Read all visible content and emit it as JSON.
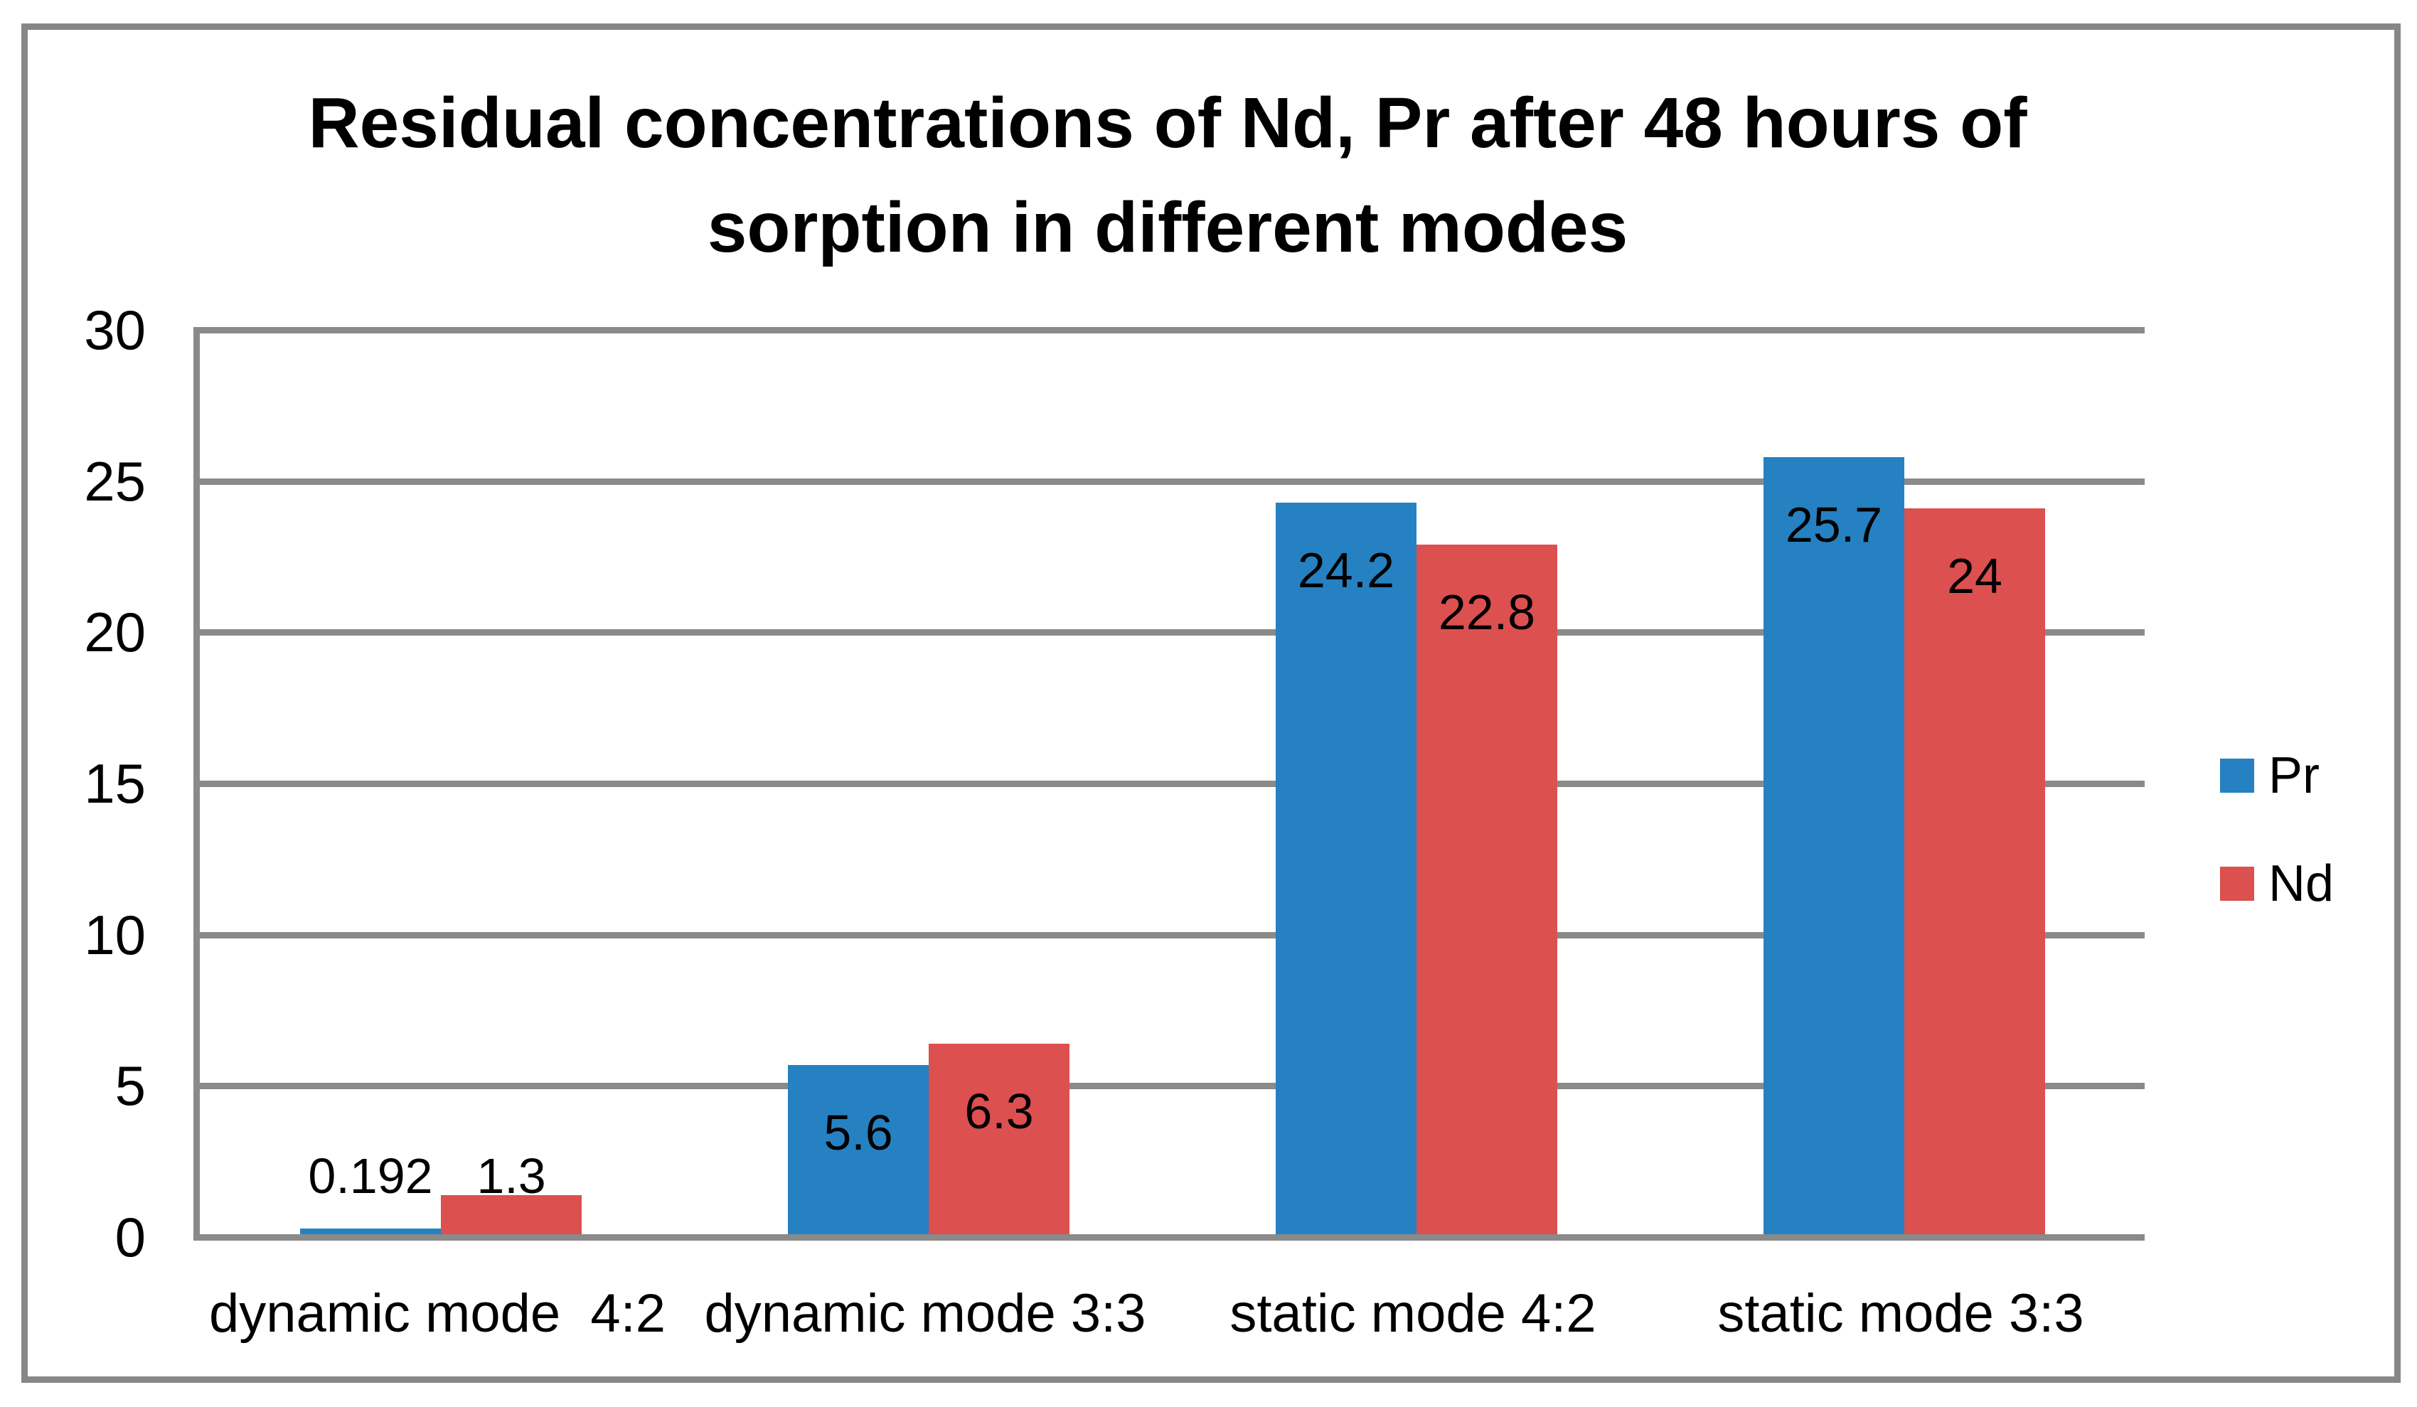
{
  "title_lines": [
    "Residual concentrations of Nd, Pr after 48 hours of",
    "sorption in different modes"
  ],
  "chart_data": {
    "type": "bar",
    "title": "Residual concentrations of Nd, Pr after 48 hours of sorption in different modes",
    "categories": [
      "dynamic mode  4:2",
      "dynamic mode 3:3",
      "static mode 4:2",
      "static mode 3:3"
    ],
    "series": [
      {
        "name": "Pr",
        "color": "#2581c1",
        "values": [
          0.192,
          5.6,
          24.2,
          25.7
        ]
      },
      {
        "name": "Nd",
        "color": "#dc504f",
        "values": [
          1.3,
          6.3,
          22.8,
          24
        ]
      }
    ],
    "xlabel": "",
    "ylabel": "",
    "ylim": [
      0,
      30
    ],
    "yticks": [
      0,
      5,
      10,
      15,
      20,
      25,
      30
    ],
    "grid": true,
    "legend_position": "right",
    "data_labels_shown": true
  },
  "colors": {
    "pr": "#2581c1",
    "nd": "#dc504f",
    "gridline": "#8a8a8a",
    "frame_border": "#878787",
    "text": "#000000",
    "background": "#ffffff"
  }
}
